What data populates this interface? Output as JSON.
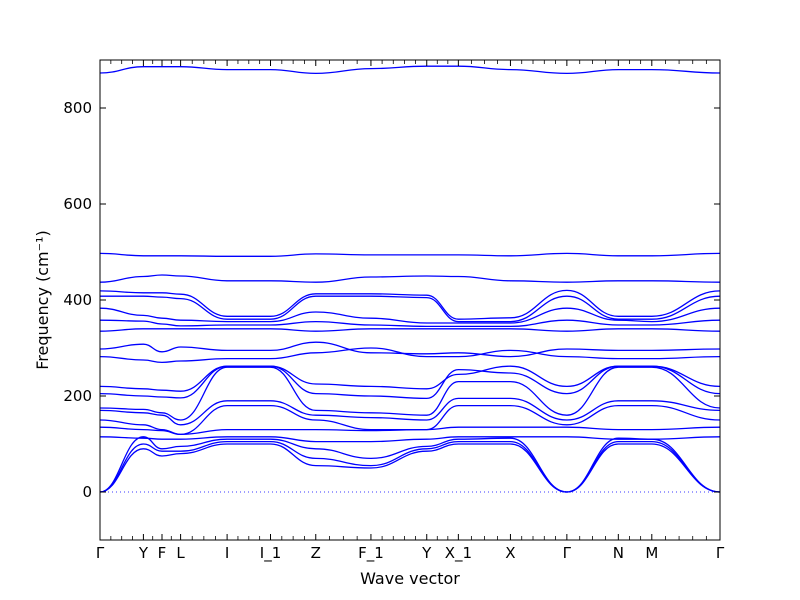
{
  "chart_data": {
    "type": "line",
    "title": "",
    "xlabel": "Wave vector",
    "ylabel": "Frequency (cm⁻¹)",
    "ylim": [
      -100,
      900
    ],
    "yticks": [
      0,
      200,
      400,
      600,
      800
    ],
    "grid": false,
    "legend": "none",
    "colors": {
      "bands": "#0000ff",
      "zero_line": "#3b3bff",
      "axes": "#000000"
    },
    "high_symmetry_points": [
      {
        "label": "Γ",
        "x": 0.0
      },
      {
        "label": "Y",
        "x": 0.07
      },
      {
        "label": "F",
        "x": 0.1
      },
      {
        "label": "L",
        "x": 0.13
      },
      {
        "label": "I",
        "x": 0.205
      },
      {
        "label": "I_1",
        "x": 0.275
      },
      {
        "label": "Z",
        "x": 0.348
      },
      {
        "label": "F_1",
        "x": 0.437
      },
      {
        "label": "Y",
        "x": 0.527
      },
      {
        "label": "X_1",
        "x": 0.578
      },
      {
        "label": "X",
        "x": 0.662
      },
      {
        "label": "Γ",
        "x": 0.753
      },
      {
        "label": "N",
        "x": 0.836
      },
      {
        "label": "M",
        "x": 0.89
      },
      {
        "label": "Γ",
        "x": 1.0
      }
    ],
    "x": [
      0.0,
      0.07,
      0.1,
      0.13,
      0.205,
      0.275,
      0.348,
      0.437,
      0.527,
      0.578,
      0.662,
      0.753,
      0.836,
      0.89,
      1.0
    ],
    "series": [
      {
        "values": [
          873,
          886,
          886,
          886,
          880,
          880,
          872,
          882,
          887,
          887,
          880,
          872,
          880,
          880,
          873
        ]
      },
      {
        "values": [
          497,
          492,
          492,
          492,
          491,
          491,
          496,
          494,
          494,
          494,
          492,
          497,
          492,
          492,
          497
        ]
      },
      {
        "values": [
          437,
          449,
          452,
          450,
          440,
          440,
          437,
          448,
          450,
          449,
          440,
          437,
          440,
          440,
          437
        ]
      },
      {
        "values": [
          419,
          415,
          415,
          412,
          366,
          366,
          413,
          413,
          410,
          360,
          363,
          420,
          366,
          366,
          419
        ]
      },
      {
        "values": [
          408,
          408,
          406,
          403,
          360,
          360,
          408,
          408,
          405,
          355,
          355,
          408,
          360,
          360,
          408
        ]
      },
      {
        "values": [
          383,
          368,
          362,
          358,
          355,
          355,
          375,
          362,
          352,
          352,
          352,
          383,
          358,
          355,
          383
        ]
      },
      {
        "values": [
          358,
          356,
          350,
          346,
          348,
          348,
          355,
          348,
          345,
          345,
          345,
          358,
          348,
          348,
          358
        ]
      },
      {
        "values": [
          335,
          340,
          340,
          340,
          340,
          340,
          335,
          340,
          340,
          340,
          340,
          335,
          340,
          340,
          335
        ]
      },
      {
        "values": [
          298,
          308,
          292,
          302,
          295,
          295,
          312,
          290,
          288,
          290,
          282,
          298,
          295,
          295,
          298
        ]
      },
      {
        "values": [
          282,
          275,
          270,
          273,
          278,
          278,
          290,
          300,
          282,
          282,
          295,
          282,
          278,
          278,
          282
        ]
      },
      {
        "values": [
          220,
          215,
          212,
          210,
          262,
          262,
          225,
          220,
          215,
          245,
          262,
          220,
          262,
          262,
          220
        ]
      },
      {
        "values": [
          205,
          200,
          198,
          196,
          262,
          262,
          205,
          200,
          195,
          255,
          248,
          205,
          262,
          262,
          205
        ]
      },
      {
        "values": [
          175,
          172,
          165,
          150,
          260,
          260,
          170,
          165,
          160,
          230,
          230,
          160,
          260,
          260,
          175
        ]
      },
      {
        "values": [
          170,
          165,
          160,
          140,
          190,
          190,
          160,
          155,
          150,
          195,
          195,
          150,
          190,
          190,
          170
        ]
      },
      {
        "values": [
          150,
          140,
          130,
          120,
          180,
          180,
          150,
          130,
          130,
          180,
          180,
          140,
          180,
          180,
          150
        ]
      },
      {
        "values": [
          135,
          130,
          128,
          120,
          130,
          130,
          130,
          128,
          130,
          135,
          135,
          135,
          130,
          130,
          135
        ]
      },
      {
        "values": [
          115,
          112,
          110,
          110,
          115,
          115,
          105,
          105,
          110,
          115,
          115,
          115,
          110,
          110,
          115
        ]
      },
      {
        "values": [
          0,
          115,
          90,
          95,
          110,
          110,
          90,
          70,
          95,
          110,
          112,
          0,
          112,
          110,
          0
        ]
      },
      {
        "values": [
          0,
          100,
          85,
          85,
          105,
          105,
          70,
          55,
          90,
          105,
          105,
          0,
          105,
          105,
          0
        ]
      },
      {
        "values": [
          0,
          90,
          75,
          80,
          100,
          100,
          55,
          50,
          85,
          100,
          100,
          0,
          100,
          100,
          0
        ]
      }
    ]
  },
  "labels": {
    "ytick_labels": [
      "0",
      "200",
      "400",
      "600",
      "800"
    ],
    "xlabel": "Wave vector",
    "ylabel": "Frequency (cm⁻¹)"
  }
}
